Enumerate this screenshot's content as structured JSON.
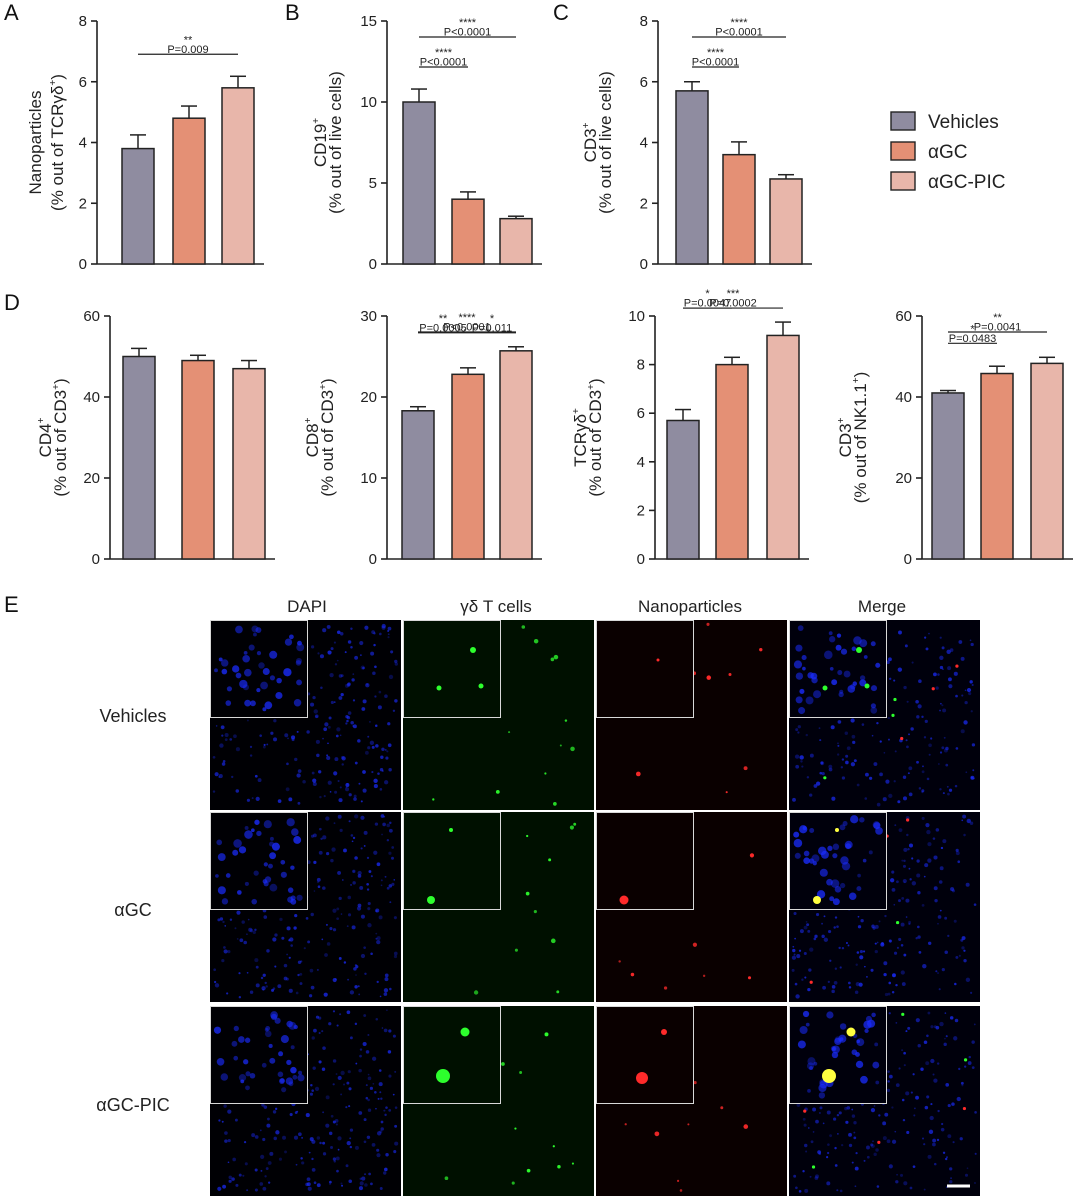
{
  "colors": {
    "vehicles": "#8f8ca0",
    "agc": "#e49075",
    "agcpic": "#e8b6aa",
    "dapi": "#1a2cff",
    "gd": "#2dff2d",
    "np": "#ff2a2a",
    "merge_pos": "#ffff40"
  },
  "legend": [
    "Vehicles",
    "αGC",
    "αGC-PIC"
  ],
  "chart_data": [
    {
      "type": "bar",
      "panel": "A",
      "ylabel_parts": [
        [
          "Nanoparticles",
          ""
        ],
        [
          "(% out of TCRγδ",
          "+",
          ")"
        ]
      ],
      "ylim": [
        0,
        8
      ],
      "yticks": [
        0,
        2,
        4,
        6,
        8
      ],
      "values": [
        3.8,
        4.8,
        5.8
      ],
      "errors": [
        0.45,
        0.4,
        0.38
      ],
      "sig": [
        {
          "a": 0,
          "b": 2,
          "stars": "**",
          "p": "P=0.009"
        }
      ]
    },
    {
      "type": "bar",
      "panel": "B",
      "ylabel_parts": [
        [
          "CD19",
          "+",
          ""
        ],
        [
          "(% out of live cells)"
        ]
      ],
      "ylim": [
        0,
        15
      ],
      "yticks": [
        0,
        5,
        10,
        15
      ],
      "values": [
        10.0,
        4.0,
        2.8
      ],
      "errors": [
        0.8,
        0.45,
        0.15
      ],
      "sig": [
        {
          "a": 0,
          "b": 1,
          "stars": "****",
          "p": "P<0.0001"
        },
        {
          "a": 0,
          "b": 2,
          "stars": "****",
          "p": "P<0.0001"
        }
      ]
    },
    {
      "type": "bar",
      "panel": "C",
      "ylabel_parts": [
        [
          "CD3",
          "+",
          ""
        ],
        [
          "(% out of live cells)"
        ]
      ],
      "ylim": [
        0,
        8
      ],
      "yticks": [
        0,
        2,
        4,
        6,
        8
      ],
      "values": [
        5.7,
        3.6,
        2.8
      ],
      "errors": [
        0.3,
        0.42,
        0.14
      ],
      "sig": [
        {
          "a": 0,
          "b": 1,
          "stars": "****",
          "p": "P<0.0001"
        },
        {
          "a": 0,
          "b": 2,
          "stars": "****",
          "p": "P<0.0001"
        }
      ]
    },
    {
      "type": "bar",
      "panel": "D",
      "ylabel_parts": [
        [
          "CD4",
          "+",
          ""
        ],
        [
          "(% out of CD3",
          "+",
          ")"
        ]
      ],
      "ylim": [
        0,
        60
      ],
      "yticks": [
        0,
        20,
        40,
        60
      ],
      "values": [
        50,
        49,
        47
      ],
      "errors": [
        2.0,
        1.3,
        2.0
      ],
      "sig": []
    },
    {
      "type": "bar",
      "panel": "",
      "ylabel_parts": [
        [
          "CD8",
          "+",
          ""
        ],
        [
          "(% out of CD3",
          "+",
          ")"
        ]
      ],
      "ylim": [
        0,
        30
      ],
      "yticks": [
        0,
        10,
        20,
        30
      ],
      "values": [
        18.3,
        22.8,
        25.7
      ],
      "errors": [
        0.5,
        0.8,
        0.5
      ],
      "sig": [
        {
          "a": 0,
          "b": 1,
          "stars": "**",
          "p": "P=0.0005"
        },
        {
          "a": 1,
          "b": 2,
          "stars": "*",
          "p": "P=0.011"
        },
        {
          "a": 0,
          "b": 2,
          "stars": "****",
          "p": "P<0.0001"
        }
      ]
    },
    {
      "type": "bar",
      "panel": "",
      "ylabel_parts": [
        [
          "TCRγδ",
          "+",
          ""
        ],
        [
          "(% out of CD3",
          "+",
          ")"
        ]
      ],
      "ylim": [
        0,
        10
      ],
      "yticks": [
        0,
        2,
        4,
        6,
        8,
        10
      ],
      "values": [
        5.7,
        8.0,
        9.2
      ],
      "errors": [
        0.45,
        0.3,
        0.55
      ],
      "sig": [
        {
          "a": 0,
          "b": 1,
          "stars": "*",
          "p": "P=0.0047"
        },
        {
          "a": 0,
          "b": 2,
          "stars": "***",
          "p": "P=0.0002"
        }
      ]
    },
    {
      "type": "bar",
      "panel": "",
      "ylabel_parts": [
        [
          "CD3",
          "+",
          ""
        ],
        [
          "(% out of NK1.1",
          "+",
          ")"
        ]
      ],
      "ylim": [
        0,
        60
      ],
      "yticks": [
        0,
        20,
        40,
        60
      ],
      "values": [
        41,
        45.8,
        48.3
      ],
      "errors": [
        0.6,
        1.8,
        1.5
      ],
      "sig": [
        {
          "a": 0,
          "b": 1,
          "stars": "*",
          "p": "P=0.0483"
        },
        {
          "a": 0,
          "b": 2,
          "stars": "**",
          "p": "P=0.0041"
        }
      ]
    }
  ],
  "microscopy": {
    "panel": "E",
    "columns": [
      "DAPI",
      "γδ T cells",
      "Nanoparticles",
      "Merge"
    ],
    "rows": [
      "Vehicles",
      "αGC",
      "αGC-PIC"
    ]
  }
}
